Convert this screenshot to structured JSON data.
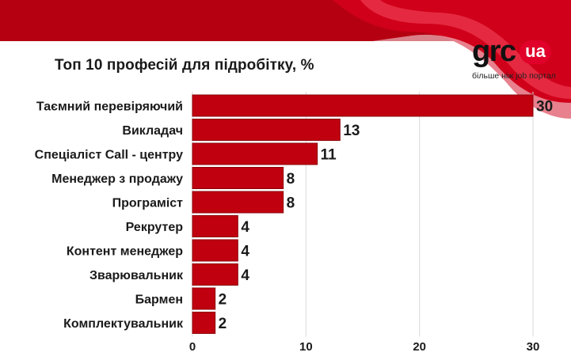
{
  "logo": {
    "word": "grc",
    "badge": "ua",
    "tagline": "більше ніж job портал",
    "badge_color": "#e0002a"
  },
  "colors": {
    "bar": "#c0000f",
    "bar_edge": "#8c0009",
    "banner": "#b50011",
    "grid": "#d9d9d9",
    "text": "#1a1a1a"
  },
  "chart_data": {
    "type": "bar",
    "orientation": "horizontal",
    "title": "Топ 10 професій для підробітку, %",
    "categories": [
      "Таємний перевіряючий",
      "Викладач",
      "Спеціаліст Call - центру",
      "Менеджер з продажу",
      "Програміст",
      "Рекрутер",
      "Контент менеджер",
      "Зварювальник",
      "Бармен",
      "Комплектувальник"
    ],
    "values": [
      30,
      13,
      11,
      8,
      8,
      4,
      4,
      4,
      2,
      2
    ],
    "xlim": [
      0,
      30
    ],
    "xticks": [
      0,
      10,
      20,
      30
    ],
    "xlabel": "",
    "ylabel": "",
    "grid": "vertical",
    "data_labels": true
  }
}
